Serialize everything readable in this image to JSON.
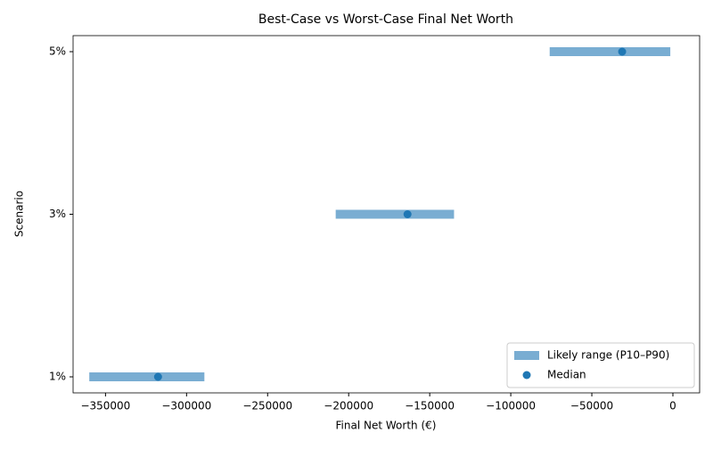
{
  "chart_data": {
    "type": "range",
    "title": "Best-Case vs Worst-Case Final Net Worth",
    "xlabel": "Final Net Worth (€)",
    "ylabel": "Scenario",
    "categories": [
      "1%",
      "3%",
      "5%"
    ],
    "series": [
      {
        "name": "Likely range (P10–P90)",
        "color": "#1f77b4",
        "opacity": 0.6,
        "low": [
          -360000,
          -208000,
          -76000
        ],
        "high": [
          -289000,
          -135000,
          -1600
        ]
      },
      {
        "name": "Median",
        "color": "#1f77b4",
        "values": [
          -317600,
          -163700,
          -31300
        ]
      }
    ],
    "xlim": [
      -370000,
      16500
    ],
    "xticks": [
      {
        "value": -350000,
        "label": "−350000"
      },
      {
        "value": -300000,
        "label": "−300000"
      },
      {
        "value": -250000,
        "label": "−250000"
      },
      {
        "value": -200000,
        "label": "−200000"
      },
      {
        "value": -150000,
        "label": "−150000"
      },
      {
        "value": -100000,
        "label": "−100000"
      },
      {
        "value": -50000,
        "label": "−50000"
      },
      0
    ],
    "legend": "lower right"
  }
}
